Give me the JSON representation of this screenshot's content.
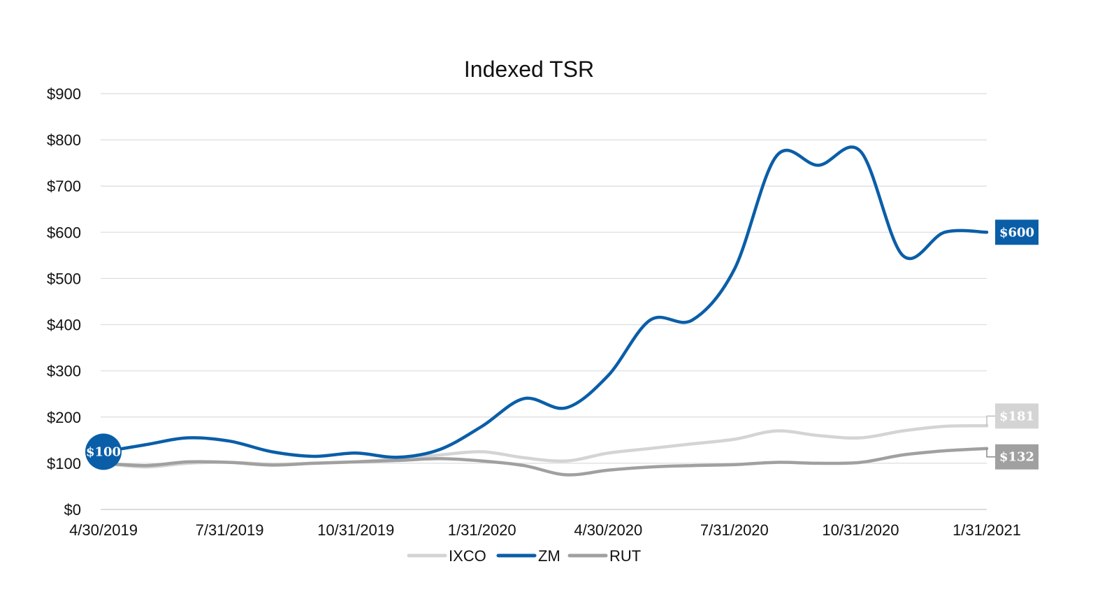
{
  "chart_data": {
    "type": "line",
    "title": "Indexed TSR",
    "xlabel": "",
    "ylabel": "",
    "ylim": [
      0,
      900
    ],
    "grid": true,
    "legend_position": "bottom-center",
    "y_ticks": [
      0,
      100,
      200,
      300,
      400,
      500,
      600,
      700,
      800,
      900
    ],
    "y_tick_labels": [
      "$0",
      "$100",
      "$200",
      "$300",
      "$400",
      "$500",
      "$600",
      "$700",
      "$800",
      "$900"
    ],
    "x_tick_labels": [
      "4/30/2019",
      "7/31/2019",
      "10/31/2019",
      "1/31/2020",
      "4/30/2020",
      "7/31/2020",
      "10/31/2020",
      "1/31/2021"
    ],
    "x_tick_positions": [
      0,
      3,
      6,
      9,
      12,
      15,
      18,
      21
    ],
    "x": [
      0,
      1,
      2,
      3,
      4,
      5,
      6,
      7,
      8,
      9,
      10,
      11,
      12,
      13,
      14,
      15,
      16,
      17,
      18,
      19,
      20,
      21
    ],
    "series": [
      {
        "name": "IXCO",
        "color": "#d4d4d4",
        "values": [
          100,
          92,
          100,
          102,
          98,
          100,
          103,
          110,
          118,
          125,
          112,
          105,
          122,
          132,
          142,
          152,
          170,
          160,
          155,
          170,
          180,
          181
        ]
      },
      {
        "name": "ZM",
        "color": "#0a5ea8",
        "values": [
          125,
          140,
          155,
          148,
          125,
          115,
          122,
          113,
          130,
          180,
          240,
          220,
          290,
          410,
          410,
          520,
          765,
          745,
          775,
          550,
          600,
          600
        ]
      },
      {
        "name": "RUT",
        "color": "#a0a0a0",
        "values": [
          100,
          95,
          103,
          102,
          96,
          100,
          103,
          106,
          110,
          105,
          95,
          75,
          85,
          92,
          95,
          97,
          102,
          100,
          102,
          118,
          127,
          132
        ]
      }
    ],
    "annotations": {
      "start_label": "$100",
      "end_labels": [
        {
          "series": "IXCO",
          "text": "$181",
          "value": 181,
          "color": "#d4d4d4"
        },
        {
          "series": "ZM",
          "text": "$600",
          "value": 600,
          "color": "#0a5ea8"
        },
        {
          "series": "RUT",
          "text": "$132",
          "value": 132,
          "color": "#a0a0a0"
        }
      ]
    }
  }
}
